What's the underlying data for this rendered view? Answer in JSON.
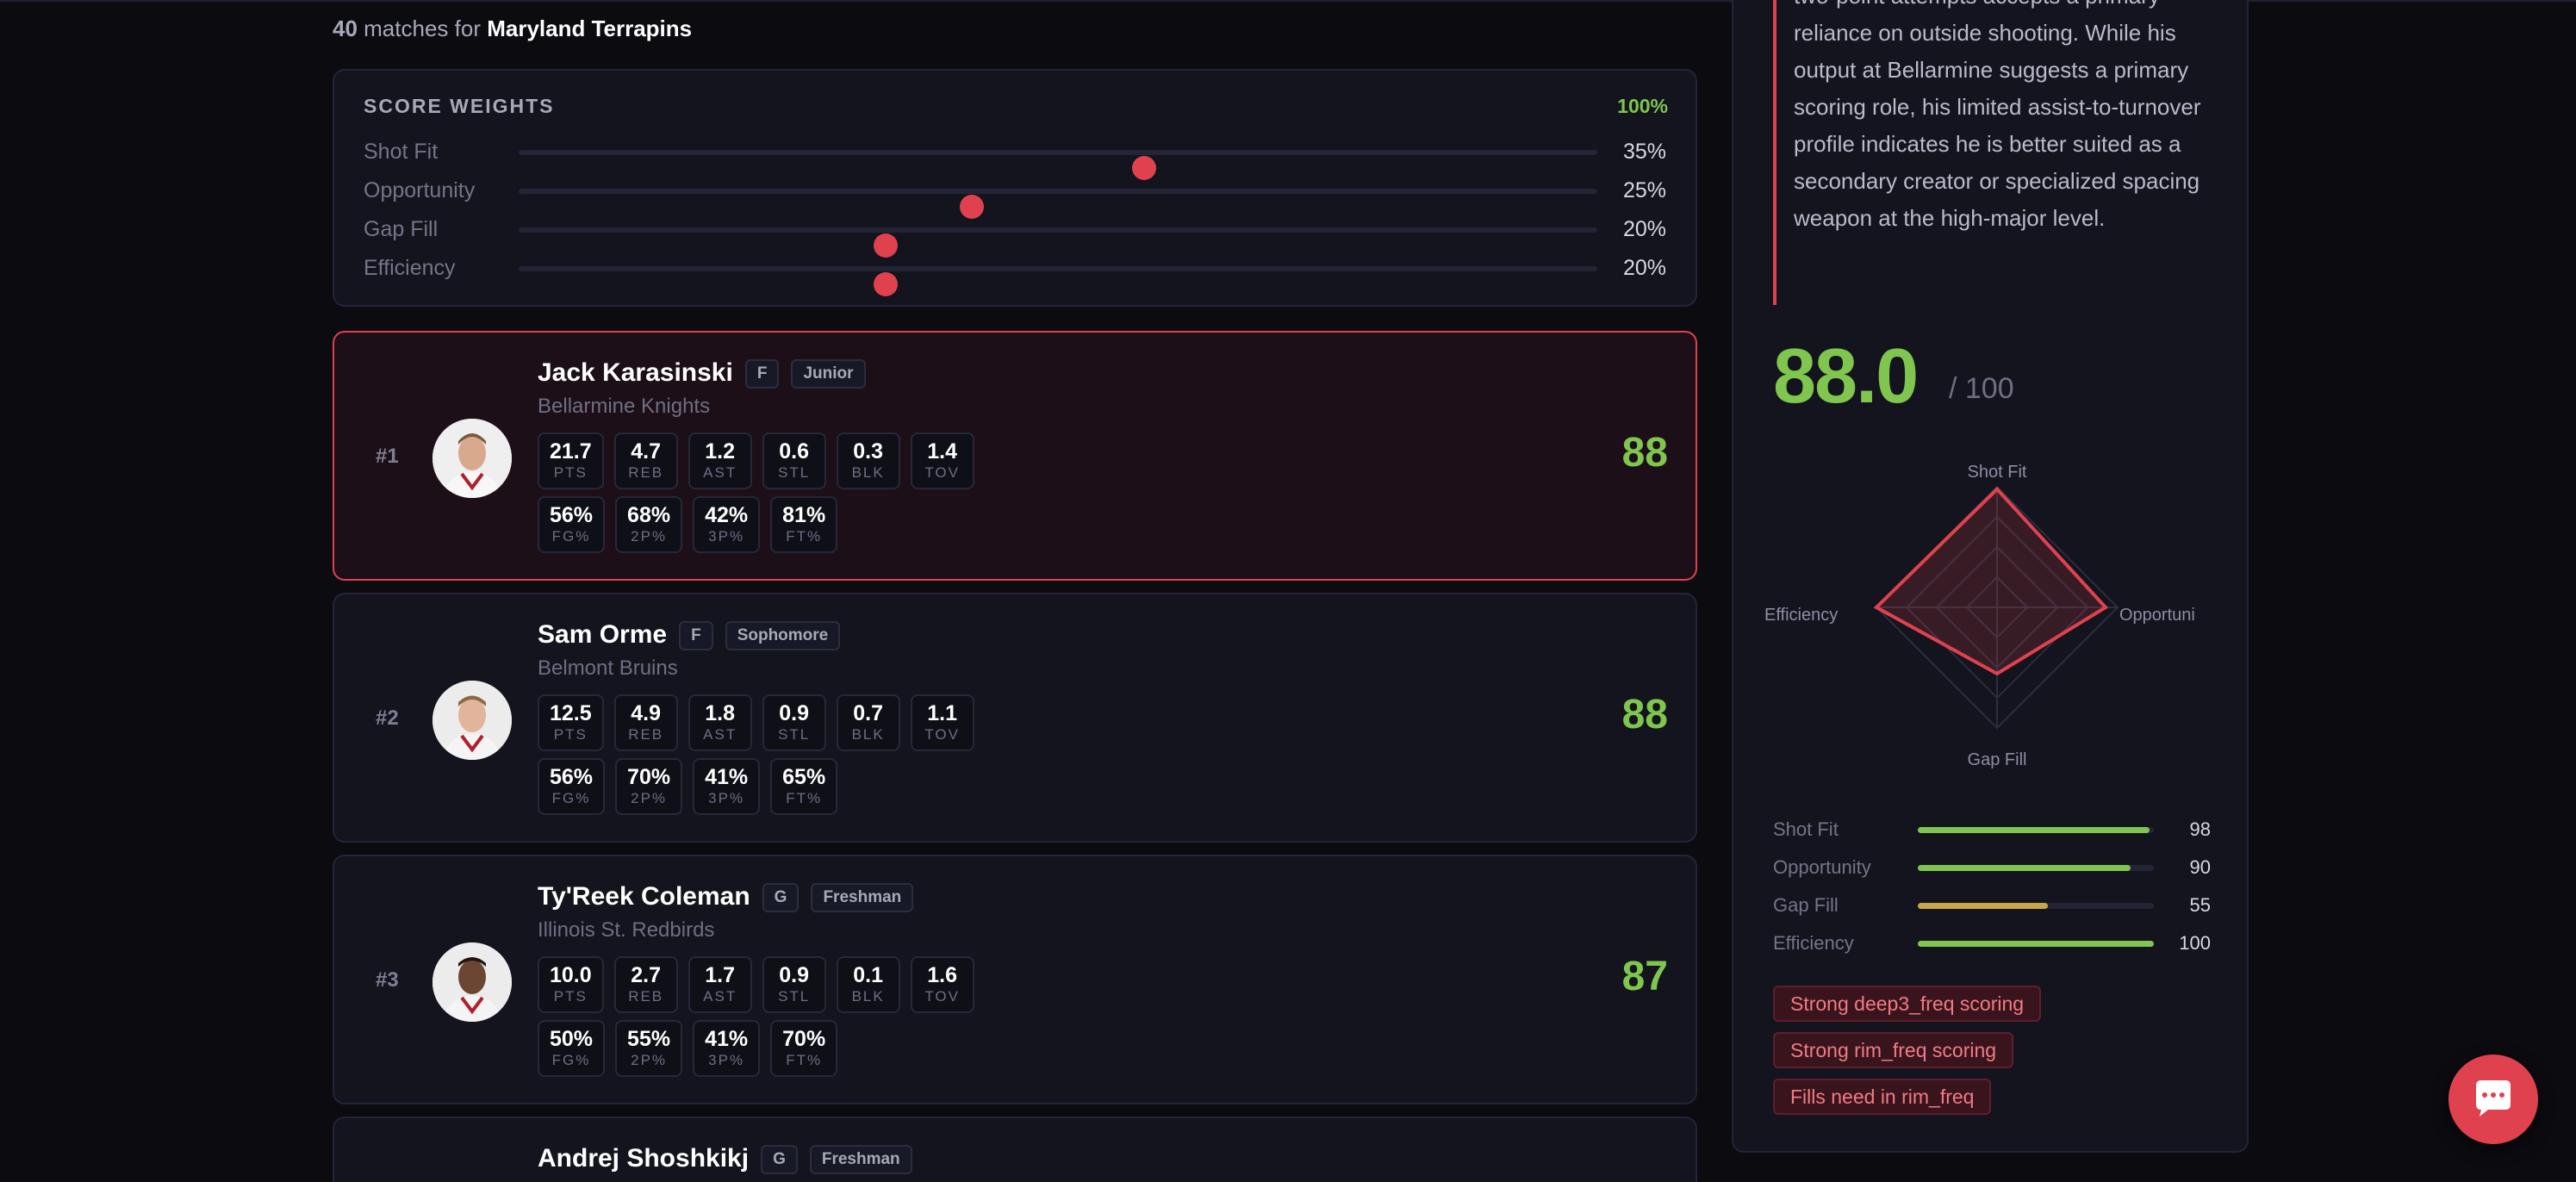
{
  "header": {
    "match_count": "40",
    "match_text": " matches for ",
    "team": "Maryland Terrapins"
  },
  "weights": {
    "title": "SCORE WEIGHTS",
    "total": "100%",
    "items": [
      {
        "label": "Shot Fit",
        "pct": "35%",
        "position": 0.58
      },
      {
        "label": "Opportunity",
        "pct": "25%",
        "position": 0.42
      },
      {
        "label": "Gap Fill",
        "pct": "20%",
        "position": 0.34
      },
      {
        "label": "Efficiency",
        "pct": "20%",
        "position": 0.34
      }
    ]
  },
  "players": [
    {
      "rank": "#1",
      "name": "Jack Karasinski",
      "position": "F",
      "class_year": "Junior",
      "team": "Bellarmine Knights",
      "score": "88",
      "stats": [
        {
          "v": "21.7",
          "k": "PTS"
        },
        {
          "v": "4.7",
          "k": "REB"
        },
        {
          "v": "1.2",
          "k": "AST"
        },
        {
          "v": "0.6",
          "k": "STL"
        },
        {
          "v": "0.3",
          "k": "BLK"
        },
        {
          "v": "1.4",
          "k": "TOV"
        }
      ],
      "pcts": [
        {
          "v": "56%",
          "k": "FG%"
        },
        {
          "v": "68%",
          "k": "2P%"
        },
        {
          "v": "42%",
          "k": "3P%"
        },
        {
          "v": "81%",
          "k": "FT%"
        }
      ]
    },
    {
      "rank": "#2",
      "name": "Sam Orme",
      "position": "F",
      "class_year": "Sophomore",
      "team": "Belmont Bruins",
      "score": "88",
      "stats": [
        {
          "v": "12.5",
          "k": "PTS"
        },
        {
          "v": "4.9",
          "k": "REB"
        },
        {
          "v": "1.8",
          "k": "AST"
        },
        {
          "v": "0.9",
          "k": "STL"
        },
        {
          "v": "0.7",
          "k": "BLK"
        },
        {
          "v": "1.1",
          "k": "TOV"
        }
      ],
      "pcts": [
        {
          "v": "56%",
          "k": "FG%"
        },
        {
          "v": "70%",
          "k": "2P%"
        },
        {
          "v": "41%",
          "k": "3P%"
        },
        {
          "v": "65%",
          "k": "FT%"
        }
      ]
    },
    {
      "rank": "#3",
      "name": "Ty'Reek Coleman",
      "position": "G",
      "class_year": "Freshman",
      "team": "Illinois St. Redbirds",
      "score": "87",
      "stats": [
        {
          "v": "10.0",
          "k": "PTS"
        },
        {
          "v": "2.7",
          "k": "REB"
        },
        {
          "v": "1.7",
          "k": "AST"
        },
        {
          "v": "0.9",
          "k": "STL"
        },
        {
          "v": "0.1",
          "k": "BLK"
        },
        {
          "v": "1.6",
          "k": "TOV"
        }
      ],
      "pcts": [
        {
          "v": "50%",
          "k": "FG%"
        },
        {
          "v": "55%",
          "k": "2P%"
        },
        {
          "v": "41%",
          "k": "3P%"
        },
        {
          "v": "70%",
          "k": "FT%"
        }
      ]
    },
    {
      "rank": "",
      "name": "Andrej Shoshkikj",
      "position": "G",
      "class_year": "Freshman",
      "team": "",
      "score": "",
      "stats": [],
      "pcts": []
    }
  ],
  "detail": {
    "analysis": "two-point attempts accepts a primary reliance on outside shooting. While his output at Bellarmine suggests a primary scoring role, his limited assist-to-turnover profile indicates he is better suited as a secondary creator or specialized spacing weapon at the high-major level.",
    "score": "88.0",
    "score_max": "/ 100",
    "radar_labels": {
      "top": "Shot Fit",
      "right": "Opportuni",
      "bottom": "Gap Fill",
      "left": "Efficiency"
    },
    "radar_values": [
      98,
      90,
      55,
      100
    ],
    "metrics": [
      {
        "label": "Shot Fit",
        "value": "98",
        "fraction": 0.98,
        "color": "#7fc54e"
      },
      {
        "label": "Opportunity",
        "value": "90",
        "fraction": 0.9,
        "color": "#7fc54e"
      },
      {
        "label": "Gap Fill",
        "value": "55",
        "fraction": 0.55,
        "color": "#c9a648"
      },
      {
        "label": "Efficiency",
        "value": "100",
        "fraction": 1.0,
        "color": "#7fc54e"
      }
    ],
    "tags": [
      "Strong deep3_freq scoring",
      "Strong rim_freq scoring",
      "Fills need in rim_freq"
    ]
  },
  "chat": {
    "icon": "chat-bubble-icon"
  },
  "colors": {
    "accent": "#e0414f",
    "good": "#7fc54e",
    "warn": "#c9a648"
  }
}
